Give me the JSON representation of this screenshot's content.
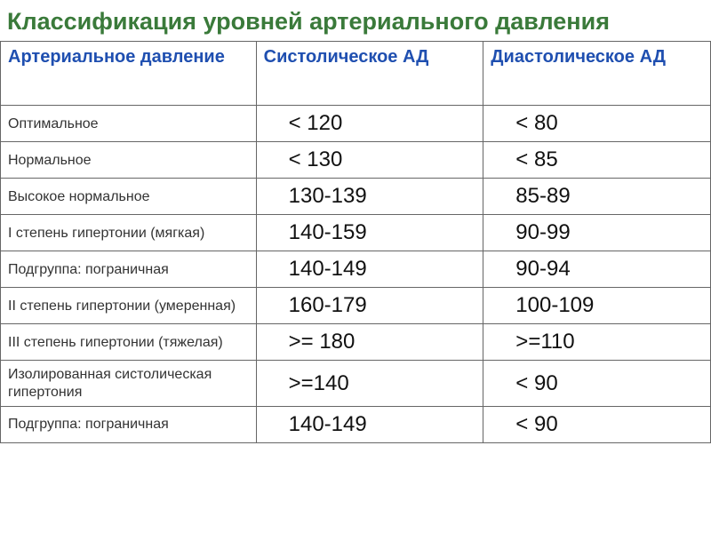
{
  "title_text": "Классификация уровней артериального давления",
  "title_color": "#3a7a3a",
  "header_color": "#1f4fb0",
  "columns": [
    {
      "label": "Артериальное давление",
      "width_pct": 36
    },
    {
      "label": "Систолическое АД",
      "width_pct": 32
    },
    {
      "label": "Диастолическое АД",
      "width_pct": 32
    }
  ],
  "label_fontsize": 16,
  "value_fontsize": 24,
  "header_fontsize": 20,
  "title_fontsize": 27,
  "border_color": "#666666",
  "rows": [
    {
      "label": "Оптимальное",
      "sys": "< 120",
      "dia": "< 80"
    },
    {
      "label": "Нормальное",
      "sys": "< 130",
      "dia": "< 85"
    },
    {
      "label": "Высокое нормальное",
      "sys": "130-139",
      "dia": "85-89"
    },
    {
      "label": "I степень гипертонии (мягкая)",
      "sys": "140-159",
      "dia": "90-99"
    },
    {
      "label": "Подгруппа: пограничная",
      "sys": "140-149",
      "dia": "90-94"
    },
    {
      "label": "II степень гипертонии (умеренная)",
      "sys": "160-179",
      "dia": "100-109"
    },
    {
      "label": "III степень гипертонии (тяжелая)",
      "sys": ">= 180",
      "dia": ">=110"
    },
    {
      "label": "Изолированная систолическая гипертония",
      "sys": ">=140",
      "dia": "< 90"
    },
    {
      "label": "Подгруппа: пограничная",
      "sys": "140-149",
      "dia": "< 90"
    }
  ]
}
